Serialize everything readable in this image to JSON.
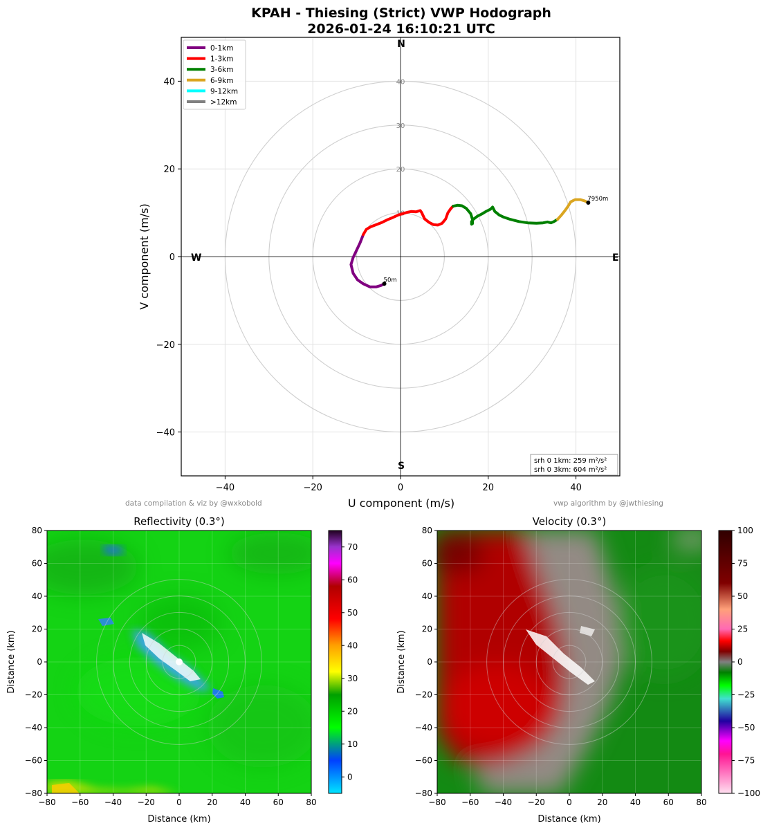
{
  "figure": {
    "title_line1": "KPAH - Thiesing (Strict) VWP Hodograph",
    "title_line2": "2026-01-24 16:10:21 UTC",
    "credit_left": "data compilation & viz by @wxkobold",
    "credit_right": "vwp algorithm by @jwthiesing"
  },
  "chart_data": [
    {
      "type": "line",
      "name": "hodograph",
      "xlabel": "U component (m/s)",
      "ylabel": "V component (m/s)",
      "xlim": [
        -50,
        50
      ],
      "ylim": [
        -50,
        50
      ],
      "xticks": [
        -40,
        -20,
        0,
        20,
        40
      ],
      "yticks": [
        -40,
        -20,
        0,
        20,
        40
      ],
      "grid": true,
      "rings": [
        10,
        20,
        30,
        40
      ],
      "compass": {
        "N": "N",
        "S": "S",
        "E": "E",
        "W": "W"
      },
      "legend_position": "upper-left",
      "series": [
        {
          "name": "0-1km",
          "color": "#800080",
          "points": [
            [
              -3.7,
              -6.2
            ],
            [
              -4.5,
              -6.6
            ],
            [
              -5.5,
              -6.9
            ],
            [
              -7,
              -6.9
            ],
            [
              -8.5,
              -6.2
            ],
            [
              -9.8,
              -5.3
            ],
            [
              -10.8,
              -3.8
            ],
            [
              -11.3,
              -1.8
            ],
            [
              -10.8,
              -0.2
            ],
            [
              -10,
              1.5
            ],
            [
              -9.2,
              3.2
            ],
            [
              -8.5,
              5
            ]
          ]
        },
        {
          "name": "1-3km",
          "color": "#ff0000",
          "points": [
            [
              -8.5,
              5
            ],
            [
              -7.8,
              6.2
            ],
            [
              -6.8,
              6.8
            ],
            [
              -5.5,
              7.3
            ],
            [
              -4.2,
              7.8
            ],
            [
              -3,
              8.4
            ],
            [
              -1.8,
              8.9
            ],
            [
              -0.5,
              9.5
            ],
            [
              0.5,
              9.8
            ],
            [
              1.5,
              10.1
            ],
            [
              2.5,
              10.3
            ],
            [
              3.5,
              10.2
            ],
            [
              4.5,
              10.5
            ],
            [
              4.8,
              10.1
            ],
            [
              5.5,
              8.6
            ],
            [
              6.5,
              7.8
            ],
            [
              7.5,
              7.3
            ],
            [
              8.5,
              7.2
            ],
            [
              9.5,
              7.6
            ],
            [
              10.3,
              8.6
            ],
            [
              10.8,
              10
            ],
            [
              11.5,
              11
            ],
            [
              12,
              11.5
            ]
          ]
        },
        {
          "name": "3-6km",
          "color": "#008000",
          "points": [
            [
              12,
              11.5
            ],
            [
              13,
              11.7
            ],
            [
              14,
              11.6
            ],
            [
              15,
              11
            ],
            [
              16,
              9.8
            ],
            [
              16.4,
              8.5
            ],
            [
              16.4,
              7.5
            ],
            [
              16.2,
              7.4
            ],
            [
              16.2,
              8
            ],
            [
              16.6,
              8.5
            ],
            [
              17.5,
              9.2
            ],
            [
              18.5,
              9.7
            ],
            [
              19.5,
              10.3
            ],
            [
              20.5,
              10.8
            ],
            [
              21,
              11.3
            ],
            [
              21.5,
              10.3
            ],
            [
              22.5,
              9.5
            ],
            [
              23.5,
              9
            ],
            [
              25,
              8.5
            ],
            [
              27,
              8
            ],
            [
              29,
              7.7
            ],
            [
              31,
              7.6
            ],
            [
              32.5,
              7.7
            ],
            [
              33.5,
              7.9
            ],
            [
              34.3,
              7.7
            ],
            [
              35,
              8
            ],
            [
              35.8,
              8.5
            ]
          ]
        },
        {
          "name": "6-9km",
          "color": "#daa520",
          "points": [
            [
              35.8,
              8.5
            ],
            [
              36.7,
              9.5
            ],
            [
              37.5,
              10.5
            ],
            [
              38.2,
              11.5
            ],
            [
              38.8,
              12.5
            ],
            [
              39.8,
              13
            ],
            [
              41,
              13
            ],
            [
              42,
              12.7
            ],
            [
              42.8,
              12.3
            ]
          ]
        },
        {
          "name": "9-12km",
          "color": "#00ffff",
          "points": []
        },
        {
          "name": ">12km",
          "color": "#808080",
          "points": []
        }
      ],
      "annotations": [
        {
          "text": "50m",
          "x": -3.7,
          "y": -6.2
        },
        {
          "text": "7950m",
          "x": 42.8,
          "y": 12.3
        }
      ],
      "info_box": [
        "srh 0 1km: 259 m²/s²",
        "srh 0 3km: 604 m²/s²"
      ]
    },
    {
      "type": "heatmap",
      "name": "reflectivity",
      "title": "Reflectivity (0.3°)",
      "xlabel": "Distance (km)",
      "ylabel": "Distance (km)",
      "xlim": [
        -80,
        80
      ],
      "ylim": [
        -80,
        80
      ],
      "xticks": [
        -80,
        -60,
        -40,
        -20,
        0,
        20,
        40,
        60,
        80
      ],
      "yticks": [
        -80,
        -60,
        -40,
        -20,
        0,
        20,
        40,
        60,
        80
      ],
      "colorbar_ticks": [
        0,
        10,
        20,
        30,
        40,
        50,
        60,
        70
      ],
      "colorbar_range": [
        -5,
        75
      ],
      "colorbar_stops": [
        [
          "#00e5ff",
          -5
        ],
        [
          "#0040ff",
          5
        ],
        [
          "#00ff00",
          15
        ],
        [
          "#00a000",
          25
        ],
        [
          "#ffff00",
          32
        ],
        [
          "#ffa000",
          40
        ],
        [
          "#ff0000",
          48
        ],
        [
          "#b00000",
          58
        ],
        [
          "#ff00ff",
          65
        ],
        [
          "#9932cc",
          70
        ],
        [
          "#200020",
          75
        ]
      ],
      "field_color": "#14d314"
    },
    {
      "type": "heatmap",
      "name": "velocity",
      "title": "Velocity (0.3°)",
      "xlabel": "Distance (km)",
      "ylabel": "Distance (km)",
      "xlim": [
        -80,
        80
      ],
      "ylim": [
        -80,
        80
      ],
      "xticks": [
        -80,
        -60,
        -40,
        -20,
        0,
        20,
        40,
        60,
        80
      ],
      "yticks": [
        -80,
        -60,
        -40,
        -20,
        0,
        20,
        40,
        60,
        80
      ],
      "colorbar_ticks": [
        -100,
        -75,
        -50,
        -25,
        0,
        25,
        50,
        75,
        100
      ],
      "colorbar_range": [
        -100,
        100
      ],
      "colorbar_stops": [
        [
          "#ffe0f0",
          -100
        ],
        [
          "#ff1493",
          -70
        ],
        [
          "#ff00ff",
          -60
        ],
        [
          "#2000a0",
          -45
        ],
        [
          "#40e0d0",
          -28
        ],
        [
          "#00ff00",
          -18
        ],
        [
          "#008000",
          -8
        ],
        [
          "#808080",
          0
        ],
        [
          "#800000",
          8
        ],
        [
          "#ff0000",
          16
        ],
        [
          "#ff69b4",
          25
        ],
        [
          "#ffa07a",
          40
        ],
        [
          "#800000",
          60
        ],
        [
          "#300000",
          100
        ]
      ],
      "field_colors": {
        "inbound": "#138a13",
        "outbound": "#b00000",
        "neutral": "#9a8a8a"
      }
    }
  ]
}
